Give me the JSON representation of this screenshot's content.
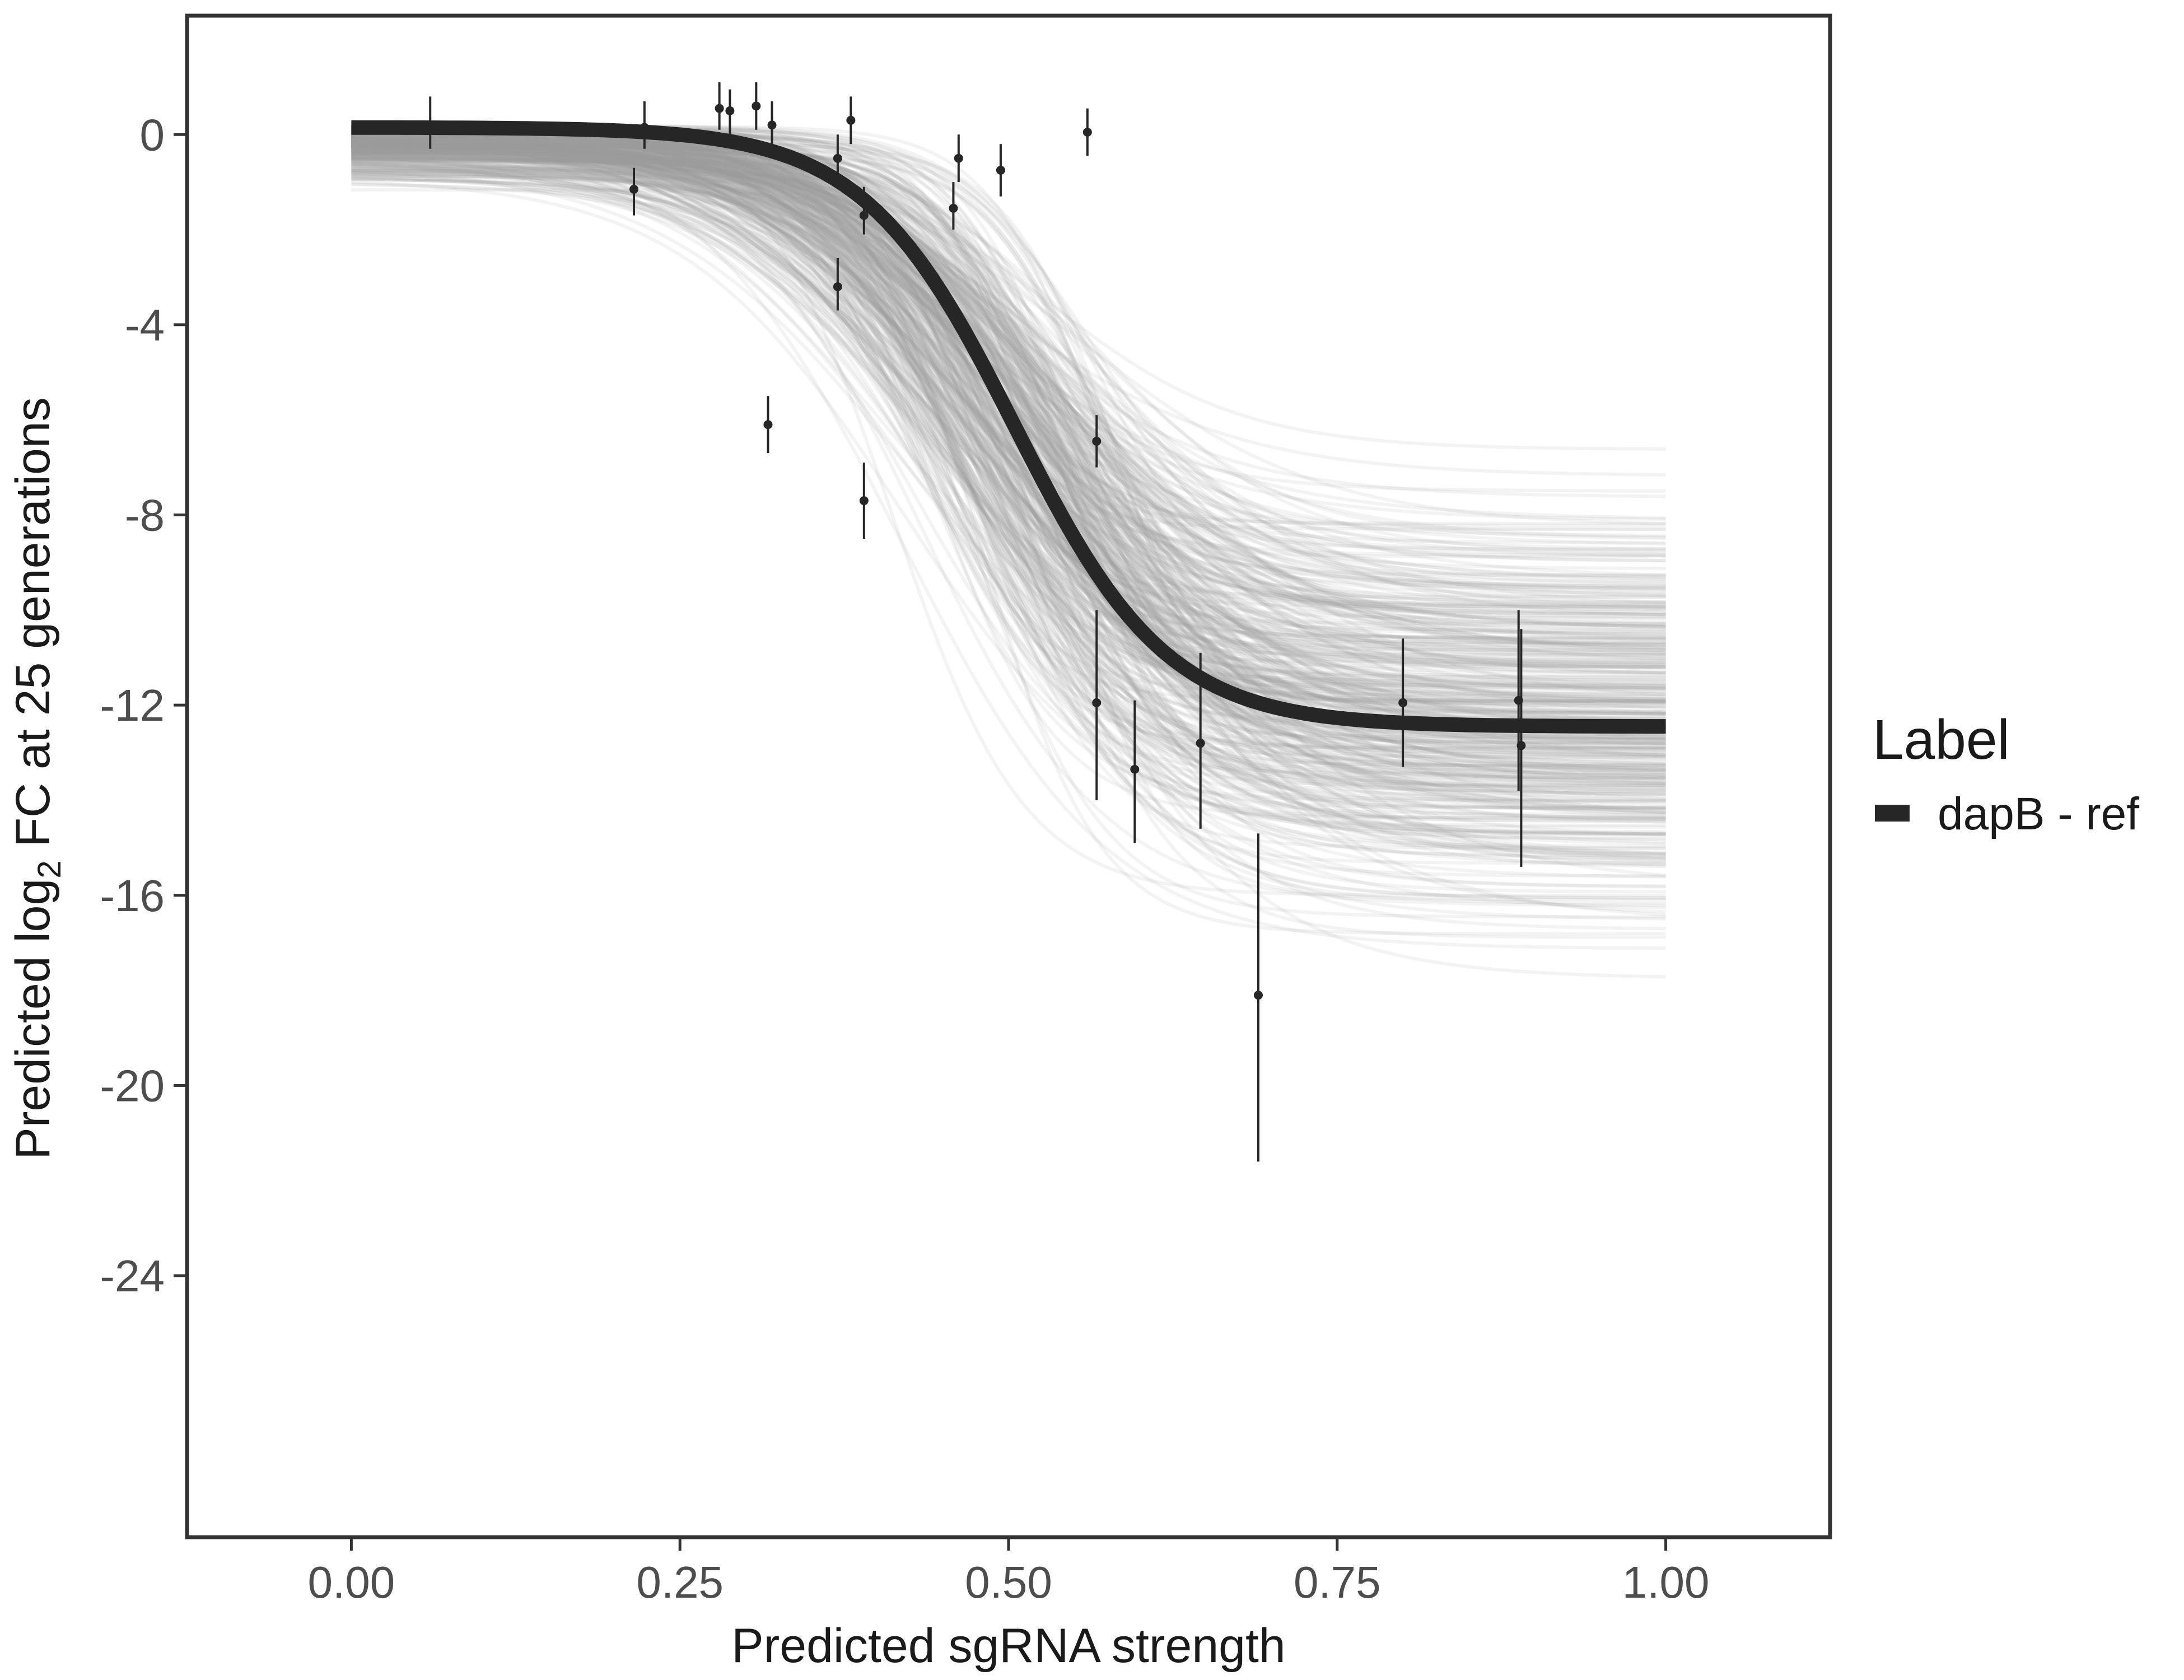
{
  "chart_data": {
    "type": "line",
    "title": "",
    "xlabel": "Predicted sgRNA strength",
    "ylabel": {
      "prefix": "Predicted  log",
      "subscript": "2",
      "suffix": " FC at 25 generations"
    },
    "xlim": [
      -0.125,
      1.125
    ],
    "ylim": [
      -29.5,
      2.5
    ],
    "x_ticks": [
      0,
      0.25,
      0.5,
      0.75,
      1
    ],
    "x_tick_labels": [
      "0.00",
      "0.25",
      "0.50",
      "0.75",
      "1.00"
    ],
    "y_ticks": [
      0,
      -4,
      -8,
      -12,
      -16,
      -20,
      -24
    ],
    "y_tick_labels": [
      "0",
      "-4",
      "-8",
      "-12",
      "-16",
      "-20",
      "-24"
    ],
    "grid": false,
    "legend": {
      "title": "Label",
      "placement": "right",
      "entries": [
        {
          "name": "dapB - ref",
          "color": "#262626"
        }
      ]
    },
    "fitted_curve": {
      "name": "dapB - ref",
      "color": "#262626",
      "model": "logistic",
      "upper": 0.15,
      "lower": -12.45,
      "midpoint": 0.505,
      "scale": 0.058
    },
    "posterior_draws": {
      "color": "#9e9e9e",
      "upper_range": [
        -1.3,
        0.2
      ],
      "lower_range": [
        -18.4,
        -6.0
      ],
      "midpoint_range": [
        0.4,
        0.6
      ],
      "scale_range": [
        0.04,
        0.1
      ]
    },
    "points": [
      {
        "x": 0.06,
        "y": 0.2,
        "lo": -0.3,
        "hi": 0.8
      },
      {
        "x": 0.215,
        "y": -1.15,
        "lo": -1.7,
        "hi": -0.7
      },
      {
        "x": 0.223,
        "y": 0.15,
        "lo": -0.3,
        "hi": 0.7
      },
      {
        "x": 0.28,
        "y": 0.55,
        "lo": 0.1,
        "hi": 1.1
      },
      {
        "x": 0.288,
        "y": 0.5,
        "lo": 0.0,
        "hi": 0.95
      },
      {
        "x": 0.308,
        "y": 0.6,
        "lo": 0.1,
        "hi": 1.1
      },
      {
        "x": 0.317,
        "y": -6.1,
        "lo": -6.7,
        "hi": -5.5
      },
      {
        "x": 0.32,
        "y": 0.2,
        "lo": -0.3,
        "hi": 0.7
      },
      {
        "x": 0.37,
        "y": -0.5,
        "lo": -1.0,
        "hi": 0.0
      },
      {
        "x": 0.37,
        "y": -3.2,
        "lo": -3.7,
        "hi": -2.6
      },
      {
        "x": 0.38,
        "y": 0.3,
        "lo": -0.2,
        "hi": 0.8
      },
      {
        "x": 0.39,
        "y": -1.7,
        "lo": -2.1,
        "hi": -1.1
      },
      {
        "x": 0.39,
        "y": -7.7,
        "lo": -8.5,
        "hi": -6.9
      },
      {
        "x": 0.458,
        "y": -1.55,
        "lo": -2.0,
        "hi": -1.0
      },
      {
        "x": 0.462,
        "y": -0.5,
        "lo": -1.0,
        "hi": 0.0
      },
      {
        "x": 0.494,
        "y": -0.75,
        "lo": -1.3,
        "hi": -0.2
      },
      {
        "x": 0.56,
        "y": 0.05,
        "lo": -0.45,
        "hi": 0.55
      },
      {
        "x": 0.567,
        "y": -6.45,
        "lo": -7.0,
        "hi": -5.9
      },
      {
        "x": 0.567,
        "y": -11.95,
        "lo": -14.0,
        "hi": -10.0
      },
      {
        "x": 0.596,
        "y": -13.35,
        "lo": -14.9,
        "hi": -11.9
      },
      {
        "x": 0.646,
        "y": -12.8,
        "lo": -14.6,
        "hi": -10.9
      },
      {
        "x": 0.69,
        "y": -18.1,
        "lo": -21.6,
        "hi": -14.7
      },
      {
        "x": 0.8,
        "y": -11.95,
        "lo": -13.3,
        "hi": -10.6
      },
      {
        "x": 0.888,
        "y": -11.9,
        "lo": -13.8,
        "hi": -10.0
      },
      {
        "x": 0.89,
        "y": -12.85,
        "lo": -15.4,
        "hi": -10.4
      }
    ]
  }
}
